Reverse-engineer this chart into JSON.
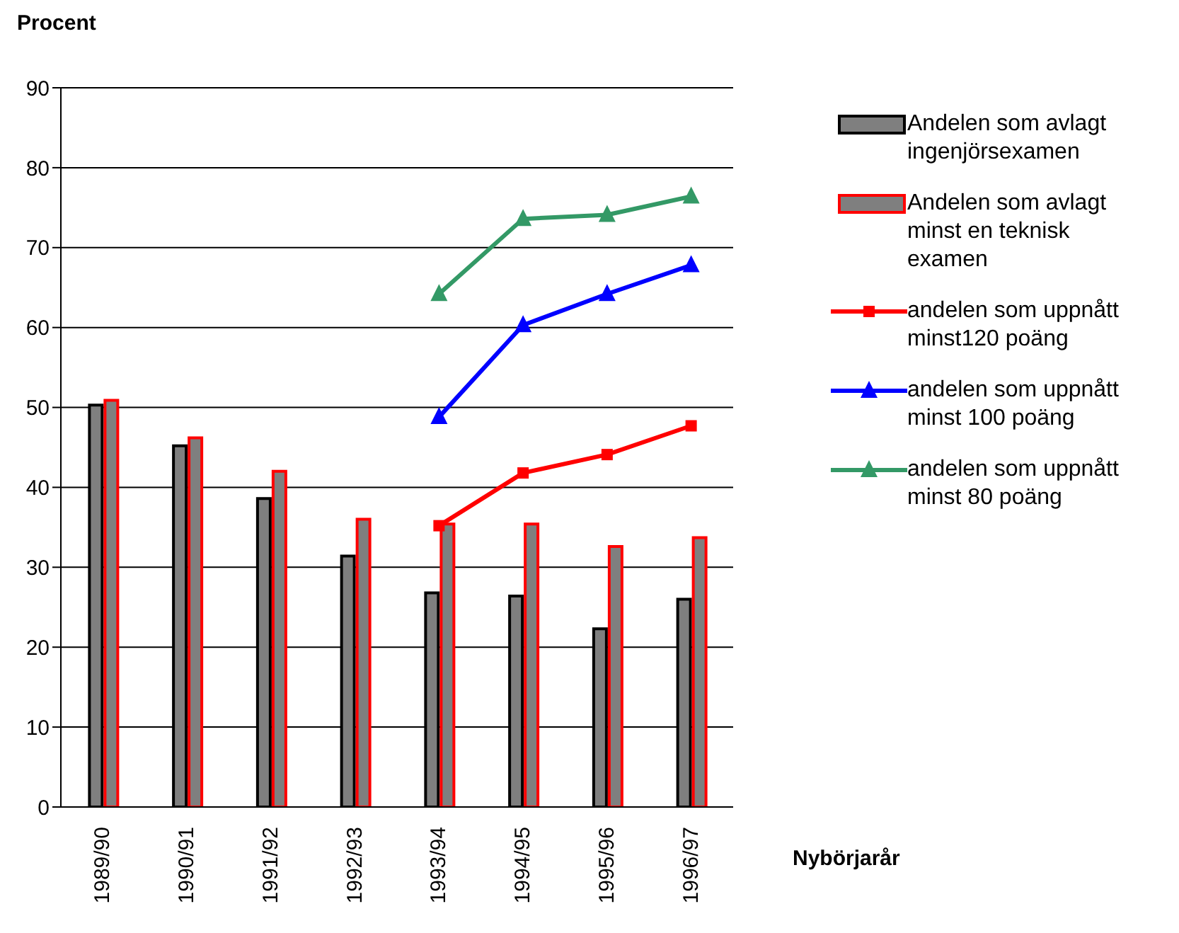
{
  "chart_data": {
    "type": "bar",
    "title": "Procent",
    "xlabel": "Nybörjarår",
    "categories": [
      "1989/90",
      "1990/91",
      "1991/92",
      "1992/93",
      "1993/94",
      "1994/95",
      "1995/96",
      "1996/97"
    ],
    "series": [
      {
        "name": "Andelen som avlagt ingenjörsexamen",
        "color": "#000000",
        "values": [
          50.3,
          45.2,
          38.6,
          31.4,
          26.8,
          26.4,
          22.3,
          26.0
        ]
      },
      {
        "name": "Andelen som avlagt minst en teknisk examen",
        "color": "#ff0000",
        "values": [
          50.9,
          46.2,
          42.0,
          36.0,
          35.4,
          35.4,
          32.6,
          33.7
        ]
      },
      {
        "name": "andelen som uppnått minst120 poäng",
        "type": "line",
        "marker": "square",
        "color": "#ff0000",
        "values": [
          null,
          null,
          null,
          null,
          35.2,
          41.8,
          44.1,
          47.7
        ]
      },
      {
        "name": "andelen som uppnått minst 100 poäng",
        "type": "line",
        "marker": "triangle",
        "color": "#0000ff",
        "values": [
          null,
          null,
          null,
          null,
          48.8,
          60.3,
          64.2,
          67.8
        ]
      },
      {
        "name": "andelen som uppnått minst 80 poäng",
        "type": "line",
        "marker": "triangle",
        "color": "#339966",
        "values": [
          null,
          null,
          null,
          null,
          64.2,
          73.6,
          74.1,
          76.4
        ]
      }
    ],
    "ylim": [
      0,
      90
    ],
    "yticks": [
      0,
      10,
      20,
      30,
      40,
      50,
      60,
      70,
      80,
      90
    ],
    "grid": "y",
    "legend": "right"
  }
}
